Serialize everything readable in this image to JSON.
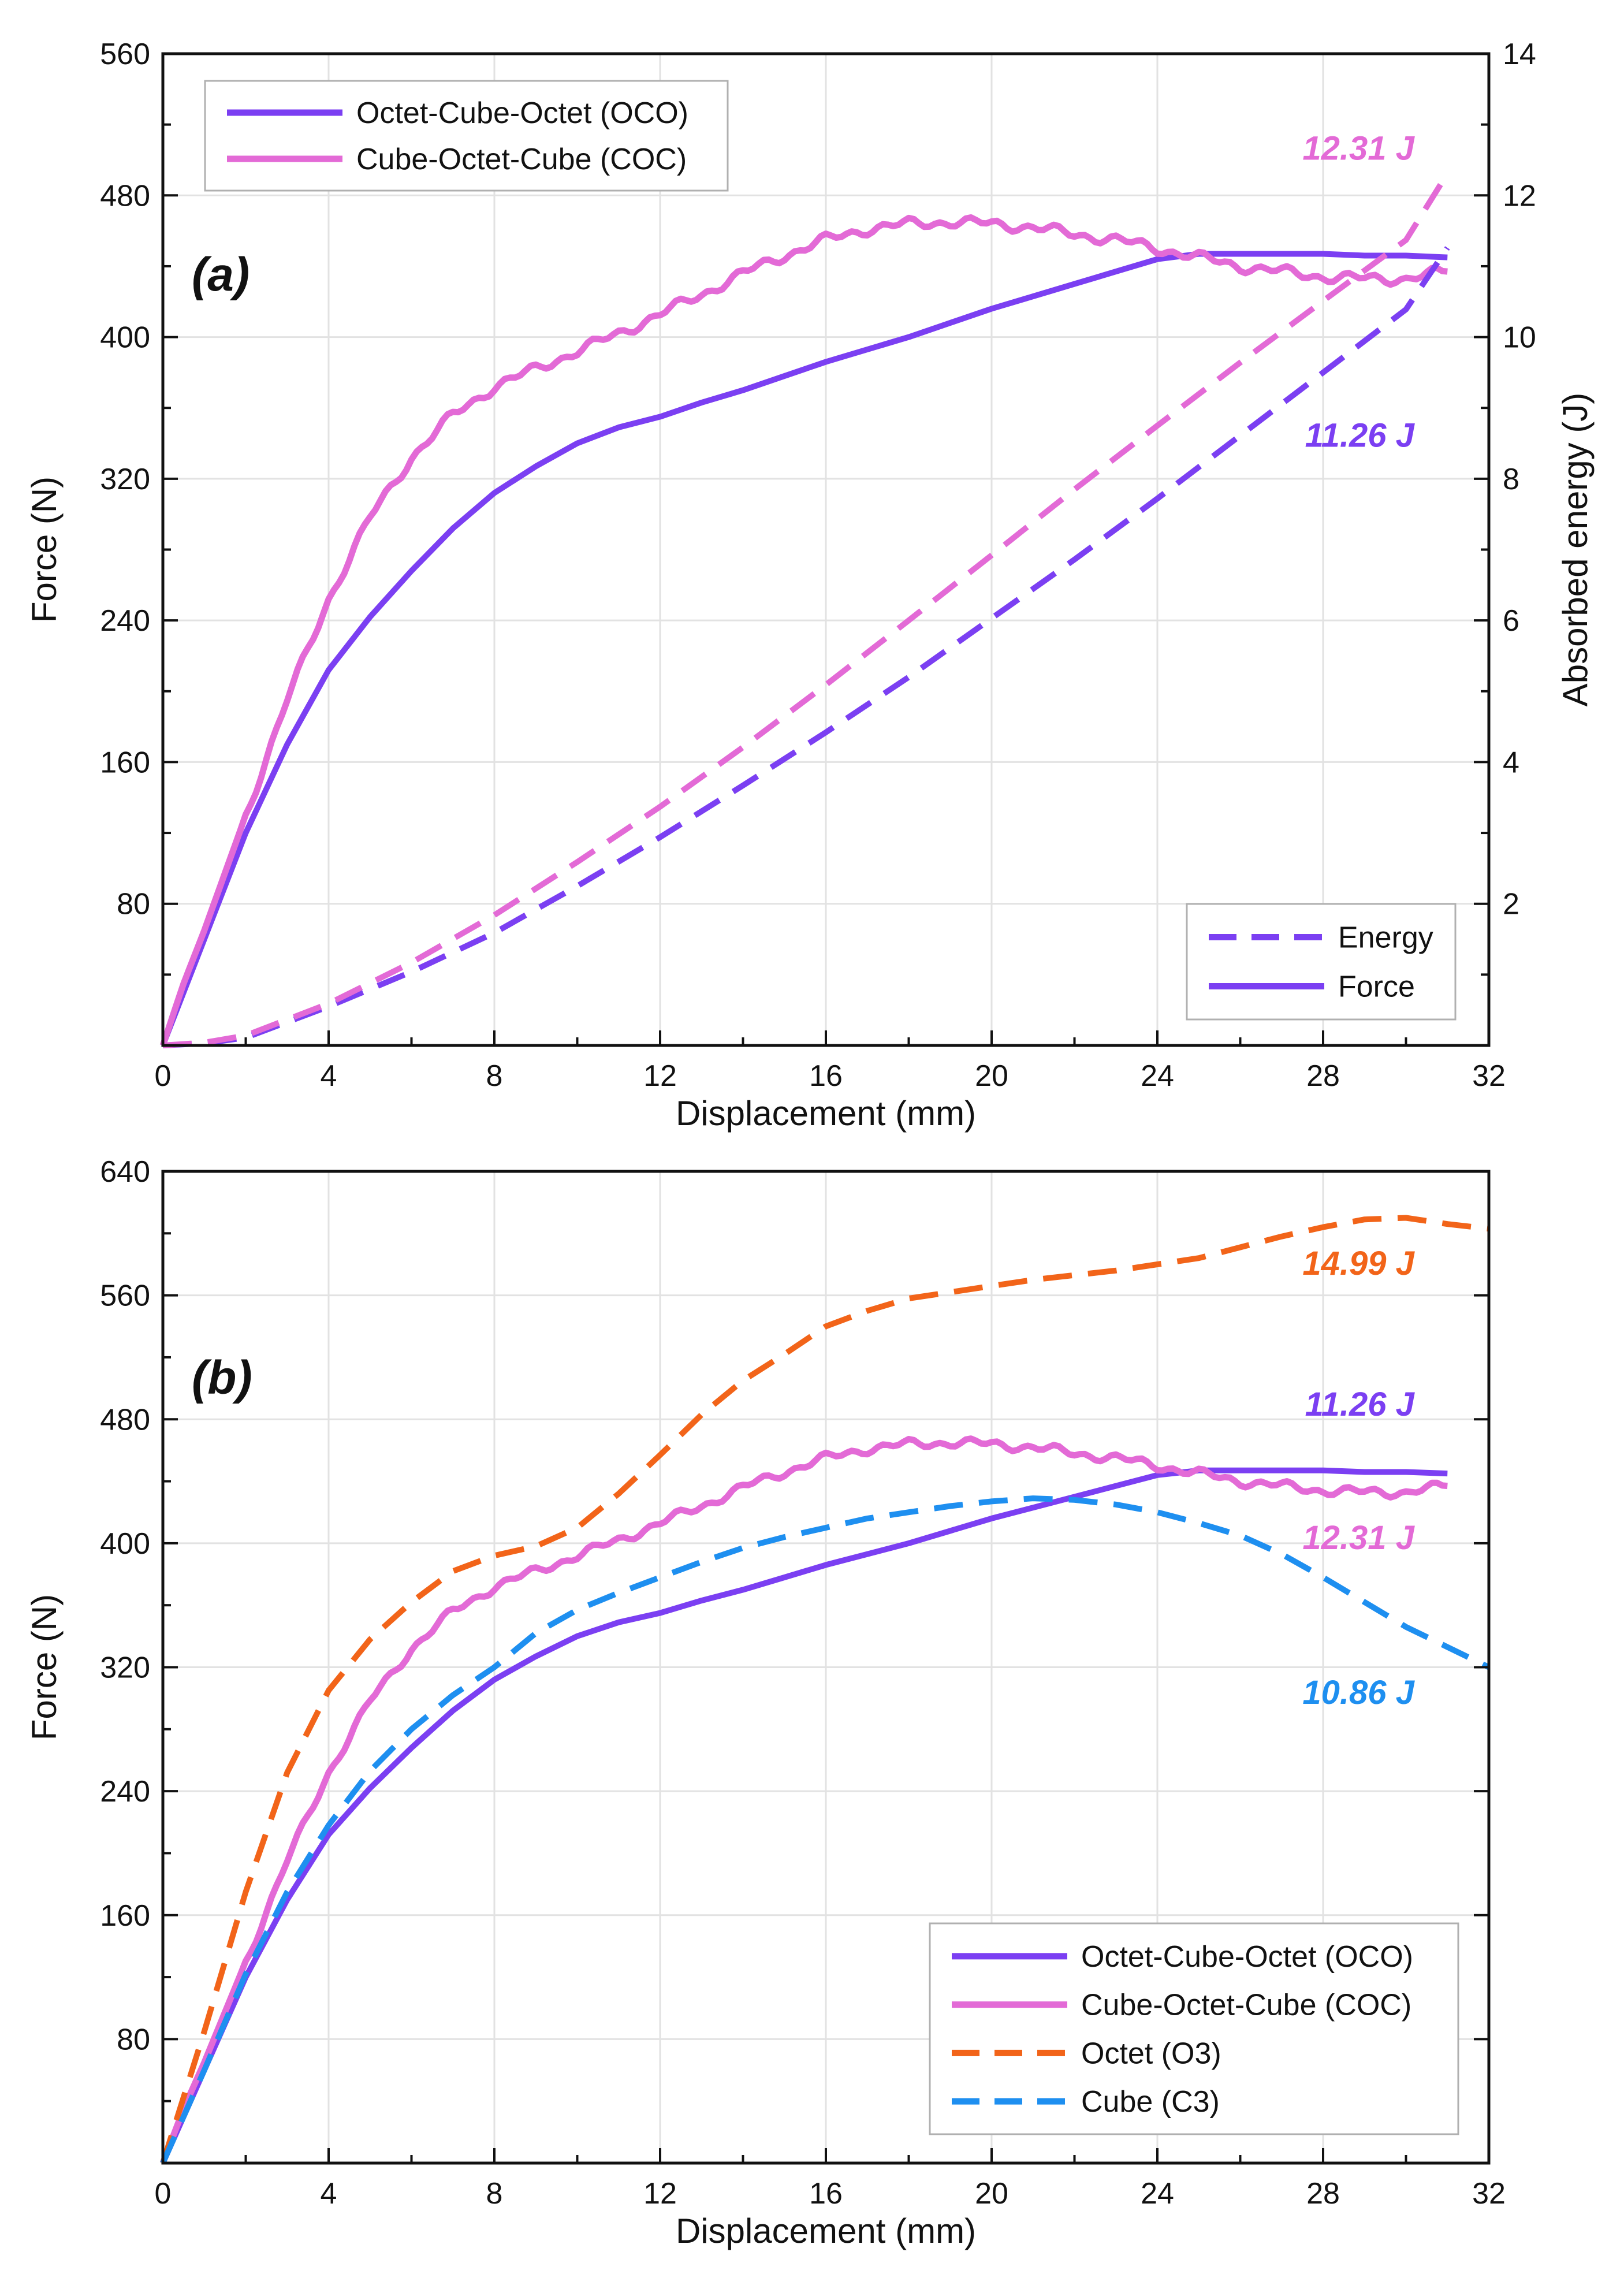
{
  "figure": {
    "panels": [
      "a",
      "b"
    ]
  },
  "chart_data": [
    {
      "panel_label": "(a)",
      "type": "line",
      "xlabel": "Displacement (mm)",
      "ylabel": "Force (N)",
      "y2label": "Absorbed energy (J)",
      "xlim": [
        0,
        32
      ],
      "ylim": [
        0,
        560
      ],
      "y2lim": [
        0,
        14
      ],
      "xticks": [
        0,
        4,
        8,
        12,
        16,
        20,
        24,
        28,
        32
      ],
      "yticks": [
        80,
        160,
        240,
        320,
        400,
        480,
        560
      ],
      "y2ticks": [
        2,
        4,
        6,
        8,
        10,
        12,
        14
      ],
      "grid": true,
      "legends": [
        {
          "placement": "top-left",
          "entries": [
            {
              "label": "Octet-Cube-Octet (OCO)",
              "color": "#7b3ff2",
              "style": "solid"
            },
            {
              "label": "Cube-Octet-Cube (COC)",
              "color": "#e36ad6",
              "style": "solid"
            }
          ]
        },
        {
          "placement": "bottom-right",
          "entries": [
            {
              "label": "Energy",
              "color": "#7b3ff2",
              "style": "dashed"
            },
            {
              "label": "Force",
              "color": "#7b3ff2",
              "style": "solid"
            }
          ]
        }
      ],
      "series": [
        {
          "key": "oco_force",
          "axis": "left",
          "color": "#7b3ff2",
          "style": "solid",
          "noisy": false,
          "x": [
            0,
            0.5,
            1,
            2,
            3,
            4,
            5,
            6,
            7,
            8,
            9,
            10,
            11,
            12,
            13,
            14,
            15,
            16,
            17,
            18,
            19,
            20,
            21,
            22,
            23,
            24,
            25,
            26,
            27,
            28,
            29,
            30,
            31
          ],
          "y": [
            0,
            30,
            60,
            120,
            170,
            212,
            242,
            268,
            292,
            312,
            327,
            340,
            349,
            355,
            363,
            370,
            378,
            386,
            393,
            400,
            408,
            416,
            423,
            430,
            437,
            444,
            447,
            447,
            447,
            447,
            446,
            446,
            445
          ]
        },
        {
          "key": "coc_force",
          "axis": "left",
          "color": "#e36ad6",
          "style": "solid",
          "noisy": true,
          "x": [
            0,
            0.5,
            1,
            2,
            3,
            4,
            5,
            6,
            7,
            8,
            9,
            10,
            11,
            12,
            13,
            14,
            15,
            16,
            17,
            18,
            19,
            20,
            21,
            22,
            23,
            24,
            25,
            26,
            27,
            28,
            29,
            30,
            31
          ],
          "y": [
            0,
            35,
            65,
            130,
            195,
            252,
            298,
            332,
            356,
            372,
            382,
            392,
            402,
            413,
            424,
            436,
            446,
            455,
            461,
            464,
            465,
            464,
            462,
            458,
            455,
            450,
            445,
            440,
            437,
            434,
            433,
            433,
            437
          ]
        },
        {
          "key": "oco_energy",
          "axis": "right",
          "color": "#7b3ff2",
          "style": "dashed",
          "noisy": false,
          "x": [
            0,
            1,
            2,
            4,
            6,
            8,
            10,
            12,
            14,
            16,
            18,
            20,
            22,
            24,
            26,
            28,
            30,
            31
          ],
          "y": [
            0,
            0.03,
            0.11,
            0.55,
            1.04,
            1.59,
            2.25,
            2.94,
            3.67,
            4.42,
            5.2,
            6.03,
            6.86,
            7.72,
            8.61,
            9.5,
            10.39,
            11.26
          ]
        },
        {
          "key": "coc_energy",
          "axis": "right",
          "color": "#e36ad6",
          "style": "dashed",
          "noisy": false,
          "x": [
            0,
            1,
            2,
            4,
            6,
            8,
            10,
            12,
            14,
            16,
            18,
            20,
            22,
            24,
            26,
            28,
            30,
            31
          ],
          "y": [
            0,
            0.04,
            0.14,
            0.59,
            1.17,
            1.84,
            2.59,
            3.37,
            4.21,
            5.09,
            6.0,
            6.92,
            7.85,
            8.75,
            9.64,
            10.51,
            11.37,
            12.31
          ]
        }
      ],
      "annotations": [
        {
          "text": "12.31 J",
          "x": 30.2,
          "y": 12.65,
          "axis": "right",
          "color": "#e36ad6"
        },
        {
          "text": "11.26 J",
          "x": 30.2,
          "y": 8.6,
          "axis": "right",
          "color": "#7b3ff2"
        }
      ]
    },
    {
      "panel_label": "(b)",
      "type": "line",
      "xlabel": "Displacement (mm)",
      "ylabel": "Force (N)",
      "xlim": [
        0,
        32
      ],
      "ylim": [
        0,
        640
      ],
      "xticks": [
        0,
        4,
        8,
        12,
        16,
        20,
        24,
        28,
        32
      ],
      "yticks": [
        80,
        160,
        240,
        320,
        400,
        480,
        560,
        640
      ],
      "grid": true,
      "legends": [
        {
          "placement": "bottom-right",
          "entries": [
            {
              "label": "Octet-Cube-Octet (OCO)",
              "color": "#7b3ff2",
              "style": "solid"
            },
            {
              "label": "Cube-Octet-Cube (COC)",
              "color": "#e36ad6",
              "style": "solid"
            },
            {
              "label": "Octet (O3)",
              "color": "#f26419",
              "style": "dashed"
            },
            {
              "label": "Cube (C3)",
              "color": "#1e8ff0",
              "style": "dashed"
            }
          ]
        }
      ],
      "series": [
        {
          "key": "oco_force",
          "axis": "left",
          "color": "#7b3ff2",
          "style": "solid",
          "noisy": false,
          "x": [
            0,
            0.5,
            1,
            2,
            3,
            4,
            5,
            6,
            7,
            8,
            9,
            10,
            11,
            12,
            13,
            14,
            15,
            16,
            17,
            18,
            19,
            20,
            21,
            22,
            23,
            24,
            25,
            26,
            27,
            28,
            29,
            30,
            31
          ],
          "y": [
            0,
            30,
            60,
            120,
            170,
            212,
            242,
            268,
            292,
            312,
            327,
            340,
            349,
            355,
            363,
            370,
            378,
            386,
            393,
            400,
            408,
            416,
            423,
            430,
            437,
            444,
            447,
            447,
            447,
            447,
            446,
            446,
            445
          ]
        },
        {
          "key": "coc_force",
          "axis": "left",
          "color": "#e36ad6",
          "style": "solid",
          "noisy": true,
          "x": [
            0,
            0.5,
            1,
            2,
            3,
            4,
            5,
            6,
            7,
            8,
            9,
            10,
            11,
            12,
            13,
            14,
            15,
            16,
            17,
            18,
            19,
            20,
            21,
            22,
            23,
            24,
            25,
            26,
            27,
            28,
            29,
            30,
            31
          ],
          "y": [
            0,
            35,
            65,
            130,
            195,
            252,
            298,
            332,
            356,
            372,
            382,
            392,
            402,
            413,
            424,
            436,
            446,
            455,
            461,
            464,
            465,
            464,
            462,
            458,
            455,
            450,
            445,
            440,
            437,
            434,
            433,
            433,
            437
          ]
        },
        {
          "key": "o3_force",
          "axis": "left",
          "color": "#f26419",
          "style": "dashed",
          "noisy": false,
          "x": [
            0,
            1,
            2,
            3,
            4,
            5,
            6,
            7,
            8,
            9,
            10,
            11,
            12,
            13,
            14,
            15,
            16,
            17,
            18,
            19,
            20,
            21,
            22,
            23,
            24,
            25,
            26,
            27,
            28,
            29,
            30,
            31,
            32
          ],
          "y": [
            0,
            85,
            175,
            252,
            305,
            338,
            362,
            382,
            392,
            398,
            410,
            432,
            457,
            483,
            505,
            522,
            540,
            550,
            558,
            562,
            566,
            570,
            573,
            576,
            580,
            584,
            591,
            598,
            604,
            609,
            610,
            606,
            603
          ]
        },
        {
          "key": "c3_force",
          "axis": "left",
          "color": "#1e8ff0",
          "style": "dashed",
          "noisy": false,
          "x": [
            0,
            1,
            2,
            3,
            4,
            5,
            6,
            7,
            8,
            9,
            10,
            11,
            12,
            13,
            14,
            15,
            16,
            17,
            18,
            19,
            20,
            21,
            22,
            23,
            24,
            25,
            26,
            27,
            28,
            29,
            30,
            31,
            32
          ],
          "y": [
            0,
            60,
            122,
            175,
            218,
            253,
            280,
            302,
            320,
            342,
            357,
            368,
            378,
            388,
            397,
            404,
            410,
            416,
            420,
            424,
            427,
            429,
            428,
            425,
            420,
            413,
            405,
            393,
            378,
            362,
            346,
            333,
            320
          ]
        }
      ],
      "annotations": [
        {
          "text": "14.99 J",
          "x": 30.2,
          "y": 580,
          "axis": "left",
          "color": "#f26419"
        },
        {
          "text": "11.26 J",
          "x": 30.2,
          "y": 489,
          "axis": "left",
          "color": "#7b3ff2"
        },
        {
          "text": "12.31 J",
          "x": 30.2,
          "y": 403,
          "axis": "left",
          "color": "#e36ad6"
        },
        {
          "text": "10.86 J",
          "x": 30.2,
          "y": 303,
          "axis": "left",
          "color": "#1e8ff0"
        }
      ]
    }
  ]
}
